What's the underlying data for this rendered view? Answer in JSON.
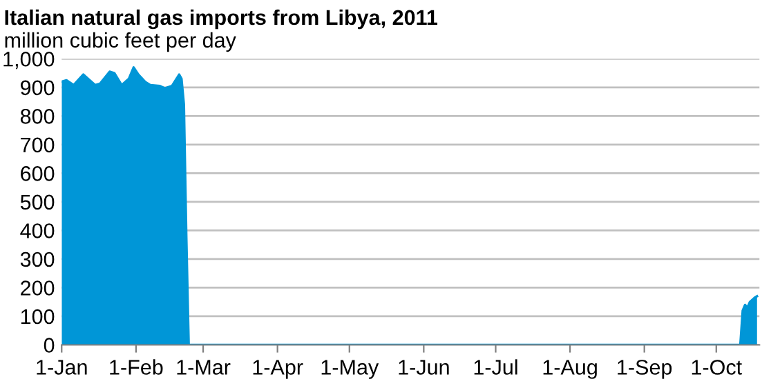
{
  "chart_data": {
    "type": "area",
    "title": "Italian natural gas imports from Libya, 2011",
    "subtitle": "million cubic feet per day",
    "series": [
      {
        "color": "#0096d7",
        "x": [
          "2011-01-01",
          "2011-01-03",
          "2011-01-06",
          "2011-01-10",
          "2011-01-12",
          "2011-01-15",
          "2011-01-17",
          "2011-01-21",
          "2011-01-23",
          "2011-01-26",
          "2011-01-29",
          "2011-01-31",
          "2011-02-02",
          "2011-02-05",
          "2011-02-07",
          "2011-02-11",
          "2011-02-13",
          "2011-02-16",
          "2011-02-19",
          "2011-02-20",
          "2011-02-21",
          "2011-02-22",
          "2011-02-23",
          "2011-10-11",
          "2011-10-12",
          "2011-10-13",
          "2011-10-14",
          "2011-10-15",
          "2011-10-17",
          "2011-10-18"
        ],
        "values": [
          920,
          925,
          908,
          945,
          930,
          908,
          913,
          955,
          950,
          908,
          930,
          970,
          945,
          918,
          908,
          905,
          897,
          905,
          945,
          930,
          840,
          380,
          0,
          0,
          120,
          140,
          130,
          150,
          165,
          170
        ]
      }
    ],
    "xlim": [
      "2011-01-01",
      "2011-10-19"
    ],
    "xticks": [
      {
        "value": "2011-01-01",
        "label": "1-Jan"
      },
      {
        "value": "2011-02-01",
        "label": "1-Feb"
      },
      {
        "value": "2011-03-01",
        "label": "1-Mar"
      },
      {
        "value": "2011-04-01",
        "label": "1-Apr"
      },
      {
        "value": "2011-05-01",
        "label": "1-May"
      },
      {
        "value": "2011-06-01",
        "label": "1-Jun"
      },
      {
        "value": "2011-07-01",
        "label": "1-Jul"
      },
      {
        "value": "2011-08-01",
        "label": "1-Aug"
      },
      {
        "value": "2011-09-01",
        "label": "1-Sep"
      },
      {
        "value": "2011-10-01",
        "label": "1-Oct"
      }
    ],
    "ylim": [
      0,
      1000
    ],
    "yticks": [
      0,
      {
        "value": 100,
        "label": "100"
      },
      200,
      300,
      400,
      500,
      600,
      700,
      800,
      900,
      {
        "value": 1000,
        "label": "1,000"
      }
    ],
    "grid": "y"
  }
}
